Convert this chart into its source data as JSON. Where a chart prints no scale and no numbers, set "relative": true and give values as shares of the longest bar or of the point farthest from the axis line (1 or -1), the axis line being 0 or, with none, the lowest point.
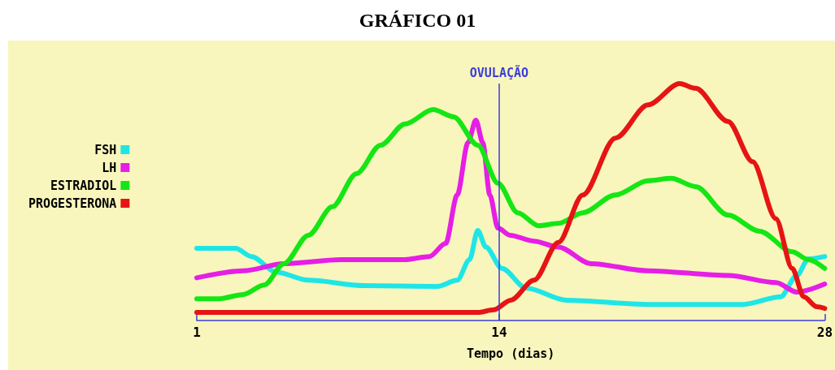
{
  "chart_data": {
    "type": "line",
    "title": "GRÁFICO 01",
    "xlabel": "Tempo (dias)",
    "relative": true,
    "xlim": [
      1,
      28
    ],
    "xticks": [
      1,
      14,
      28
    ],
    "grid": false,
    "legend": "left",
    "marker": "none",
    "line_style": "solid",
    "ref_lines": [
      {
        "axis": "x",
        "value": 14,
        "label": "OVULAÇÃO",
        "color": "#3c3cdc"
      }
    ],
    "series": [
      {
        "name": "FSH",
        "color": "#1ee6e6",
        "x": [
          1,
          2.67,
          3.36,
          4.4,
          5.8,
          8.2,
          11.34,
          12.2,
          12.73,
          13.08,
          13.43,
          14.12,
          15.16,
          16.9,
          20.4,
          24.5,
          26.1,
          26.8,
          27.3,
          28
        ],
        "values": [
          0.305,
          0.305,
          0.27,
          0.205,
          0.17,
          0.147,
          0.144,
          0.17,
          0.257,
          0.38,
          0.31,
          0.22,
          0.137,
          0.086,
          0.068,
          0.068,
          0.1,
          0.19,
          0.26,
          0.27
        ]
      },
      {
        "name": "LH",
        "color": "#e61ee6",
        "x": [
          1,
          3,
          4.75,
          7.2,
          9.96,
          11,
          11.7,
          12.2,
          12.66,
          13,
          13.3,
          13.6,
          13.95,
          14.47,
          15.5,
          16.55,
          17.94,
          20.4,
          23.84,
          25.9,
          26.8,
          28
        ],
        "values": [
          0.18,
          0.21,
          0.24,
          0.257,
          0.257,
          0.27,
          0.325,
          0.53,
          0.75,
          0.846,
          0.75,
          0.53,
          0.39,
          0.36,
          0.335,
          0.31,
          0.24,
          0.21,
          0.19,
          0.16,
          0.12,
          0.154
        ]
      },
      {
        "name": "ESTRADIOL",
        "color": "#14e614",
        "x": [
          1,
          1.97,
          3,
          3.9,
          4.75,
          5.8,
          6.83,
          7.87,
          8.9,
          9.96,
          11.17,
          12.04,
          13.08,
          13.95,
          14.8,
          15.7,
          16.55,
          17.6,
          19,
          20.4,
          21.4,
          22.45,
          23.84,
          25.2,
          26.6,
          27.3,
          28
        ],
        "values": [
          0.092,
          0.092,
          0.11,
          0.15,
          0.24,
          0.36,
          0.48,
          0.62,
          0.74,
          0.83,
          0.89,
          0.86,
          0.74,
          0.58,
          0.455,
          0.4,
          0.41,
          0.455,
          0.53,
          0.59,
          0.6,
          0.565,
          0.445,
          0.377,
          0.29,
          0.257,
          0.22
        ]
      },
      {
        "name": "PROGESTERONA",
        "color": "#e61414",
        "x": [
          1,
          13.08,
          13.77,
          14.5,
          15.5,
          16.55,
          17.6,
          19,
          20.4,
          21.76,
          22.45,
          23.84,
          24.9,
          25.9,
          26.6,
          27.1,
          27.66,
          28
        ],
        "values": [
          0.034,
          0.034,
          0.045,
          0.086,
          0.17,
          0.33,
          0.53,
          0.77,
          0.91,
          1,
          0.98,
          0.84,
          0.67,
          0.43,
          0.22,
          0.1,
          0.058,
          0.051
        ]
      }
    ]
  }
}
